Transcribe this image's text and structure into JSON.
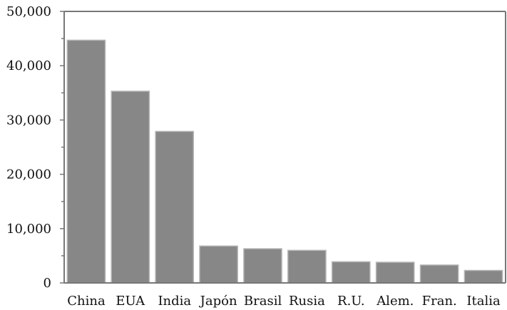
{
  "chart_data": {
    "type": "bar",
    "categories": [
      "China",
      "EUA",
      "India",
      "Japón",
      "Brasil",
      "Rusia",
      "R.U.",
      "Alem.",
      "Fran.",
      "Italia"
    ],
    "values": [
      44700,
      35300,
      27900,
      6800,
      6300,
      6000,
      3900,
      3800,
      3300,
      2300
    ],
    "yticks": [
      0,
      10000,
      20000,
      30000,
      40000,
      50000
    ],
    "ytick_labels": [
      "0",
      "10,000",
      "20,000",
      "30,000",
      "40,000",
      "50,000"
    ],
    "ylim": [
      0,
      50000
    ],
    "title": "",
    "xlabel": "",
    "ylabel": "",
    "grid": false,
    "bar_color": "#878787",
    "bar_edge_color": "#b5b5b5"
  }
}
